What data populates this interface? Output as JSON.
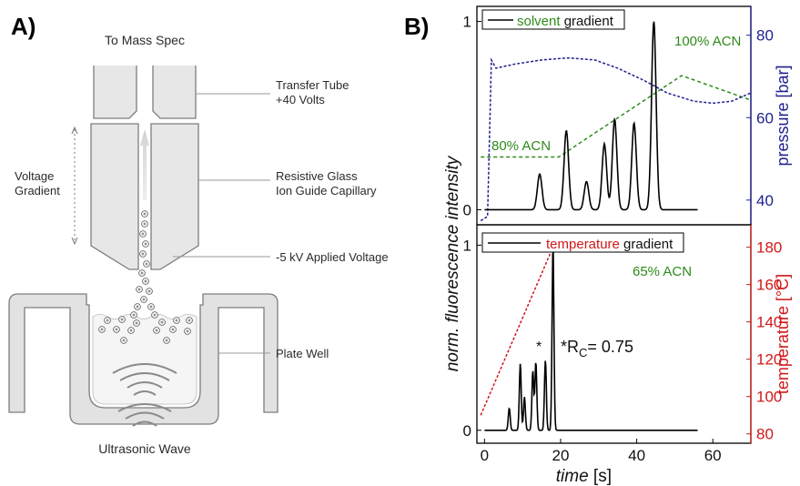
{
  "panel_a": {
    "letter": "A)",
    "labels": {
      "mass_spec": "To Mass Spec",
      "transfer_tube_line1": "Transfer Tube",
      "transfer_tube_line2": "+40 Volts",
      "voltage_gradient_line1": "Voltage",
      "voltage_gradient_line2": "Gradient",
      "glass_line1": "Resistive Glass",
      "glass_line2": "Ion Guide Capillary",
      "applied_voltage": "-5 kV Applied Voltage",
      "plate_well": "Plate Well",
      "ultrasonic": "Ultrasonic Wave"
    }
  },
  "panel_b": {
    "letter": "B)",
    "ylabel": "norm. fluorescence intensity",
    "xlabel_italic": "time",
    "xlabel_unit": " [s]",
    "x_ticks": [
      "0",
      "20",
      "40",
      "60"
    ],
    "colors": {
      "solvent": "#2e8b1a",
      "pressure": "#1f1f8f",
      "temperature": "#d01818",
      "trace": "#000000"
    }
  },
  "chart_data": [
    {
      "type": "line",
      "legend": {
        "colored": "solvent",
        "rest": " gradient"
      },
      "xlim": [
        -2,
        70
      ],
      "left_axis": {
        "ticks": [
          "0",
          "1"
        ],
        "ylim": [
          -0.08,
          1.08
        ]
      },
      "right_axis": {
        "label": "pressure [bar]",
        "ticks": [
          "40",
          "60",
          "80"
        ],
        "ylim": [
          34,
          87
        ]
      },
      "annotations": [
        "100% ACN",
        "80% ACN"
      ],
      "series": [
        {
          "role": "fluorescence",
          "peaks_x": [
            14.5,
            21.5,
            26.8,
            31.5,
            34.2,
            39.3,
            44.5
          ],
          "peaks_y": [
            0.19,
            0.42,
            0.15,
            0.35,
            0.48,
            0.46,
            1.0
          ]
        },
        {
          "role": "solvent",
          "x": [
            -1,
            0,
            11,
            19.5,
            51.8,
            70
          ],
          "percent": [
            80,
            80,
            80,
            80,
            100,
            94
          ]
        },
        {
          "role": "pressure",
          "x": [
            -1,
            0.8,
            1.8,
            3,
            8,
            15,
            22,
            29,
            35,
            42,
            48,
            55,
            60,
            65,
            70
          ],
          "y": [
            35,
            36,
            74,
            72,
            73,
            74,
            74.5,
            74,
            72,
            69,
            66,
            64,
            63.5,
            64,
            66
          ]
        }
      ]
    },
    {
      "type": "line",
      "legend": {
        "colored": "temperature",
        "rest": " gradient"
      },
      "xlim": [
        -2,
        70
      ],
      "left_axis": {
        "ticks": [
          "0",
          "1"
        ],
        "ylim": [
          -0.07,
          1.11
        ]
      },
      "right_axis": {
        "label": "temperature [°C]",
        "ticks": [
          "80",
          "100",
          "120",
          "140",
          "160",
          "180"
        ],
        "ylim": [
          75,
          192
        ]
      },
      "annotations": [
        "65% ACN",
        "*",
        "*R",
        "C",
        "= 0.75"
      ],
      "series": [
        {
          "role": "fluorescence",
          "peaks_x": [
            6.5,
            9.4,
            10.5,
            12.7,
            13.5,
            16.0,
            18.0
          ],
          "peaks_y": [
            0.12,
            0.36,
            0.18,
            0.32,
            0.37,
            0.38,
            1.0
          ]
        },
        {
          "role": "temperature",
          "x": [
            -1,
            18,
            22
          ],
          "y": [
            90,
            180,
            180
          ]
        }
      ]
    }
  ]
}
